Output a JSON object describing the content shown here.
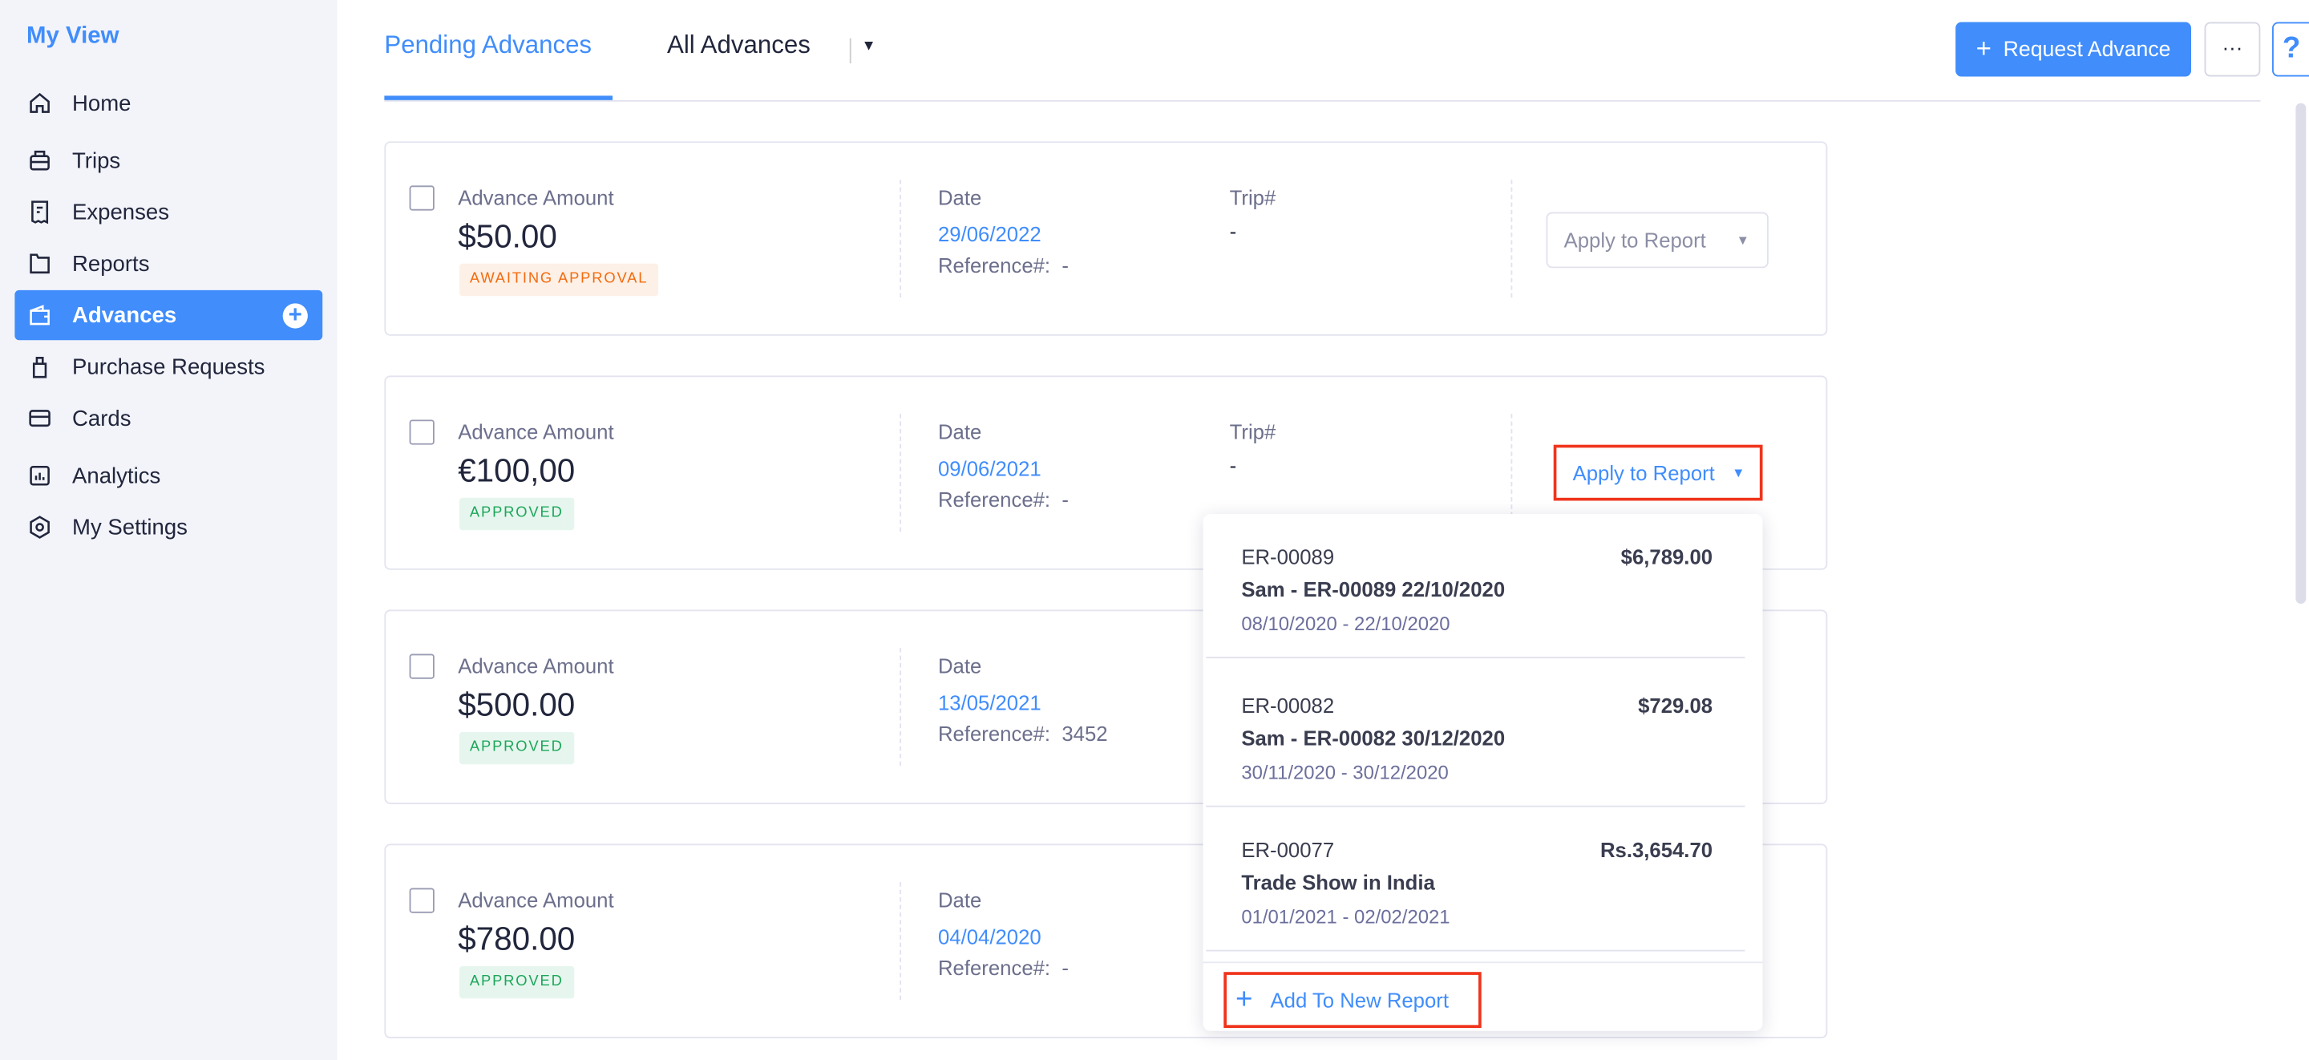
{
  "sidebar": {
    "title": "My View",
    "items": [
      {
        "label": "Home",
        "icon": "home-icon"
      },
      {
        "label": "Trips",
        "icon": "suitcase-icon"
      },
      {
        "label": "Expenses",
        "icon": "receipt-icon"
      },
      {
        "label": "Reports",
        "icon": "folder-icon"
      },
      {
        "label": "Advances",
        "icon": "wallet-icon",
        "active": true
      },
      {
        "label": "Purchase Requests",
        "icon": "bag-icon"
      },
      {
        "label": "Cards",
        "icon": "card-icon"
      },
      {
        "label": "Analytics",
        "icon": "analytics-icon"
      },
      {
        "label": "My Settings",
        "icon": "gear-icon"
      }
    ]
  },
  "header": {
    "tabs": [
      {
        "label": "Pending Advances",
        "active": true
      },
      {
        "label": "All Advances"
      }
    ],
    "request_label": "Request Advance",
    "more_label": "···",
    "help_label": "?"
  },
  "advances": [
    {
      "amount_label": "Advance Amount",
      "amount": "$50.00",
      "status": "AWAITING APPROVAL",
      "date_label": "Date",
      "date": "29/06/2022",
      "ref_label": "Reference#:",
      "ref": "-",
      "trip_label": "Trip#",
      "trip": "-",
      "apply_label": "Apply to Report"
    },
    {
      "amount_label": "Advance Amount",
      "amount": "€100,00",
      "status": "APPROVED",
      "date_label": "Date",
      "date": "09/06/2021",
      "ref_label": "Reference#:",
      "ref": "-",
      "trip_label": "Trip#",
      "trip": "-",
      "apply_label": "Apply to Report"
    },
    {
      "amount_label": "Advance Amount",
      "amount": "$500.00",
      "status": "APPROVED",
      "date_label": "Date",
      "date": "13/05/2021",
      "ref_label": "Reference#:",
      "ref": "3452"
    },
    {
      "amount_label": "Advance Amount",
      "amount": "$780.00",
      "status": "APPROVED",
      "date_label": "Date",
      "date": "04/04/2020",
      "ref_label": "Reference#:",
      "ref": "-"
    }
  ],
  "dropdown": {
    "reports": [
      {
        "id": "ER-00089",
        "name": "Sam - ER-00089 22/10/2020",
        "dates": "08/10/2020 - 22/10/2020",
        "amount": "$6,789.00"
      },
      {
        "id": "ER-00082",
        "name": "Sam - ER-00082 30/12/2020",
        "dates": "30/11/2020 - 30/12/2020",
        "amount": "$729.08"
      },
      {
        "id": "ER-00077",
        "name": "Trade Show in India",
        "dates": "01/01/2021 - 02/02/2021",
        "amount": "Rs.3,654.70"
      }
    ],
    "add_new_label": "Add To New Report"
  },
  "colors": {
    "accent": "#408dfb",
    "awaiting": "#f26b0f",
    "approved": "#1da65a",
    "highlight": "#f0341c"
  }
}
